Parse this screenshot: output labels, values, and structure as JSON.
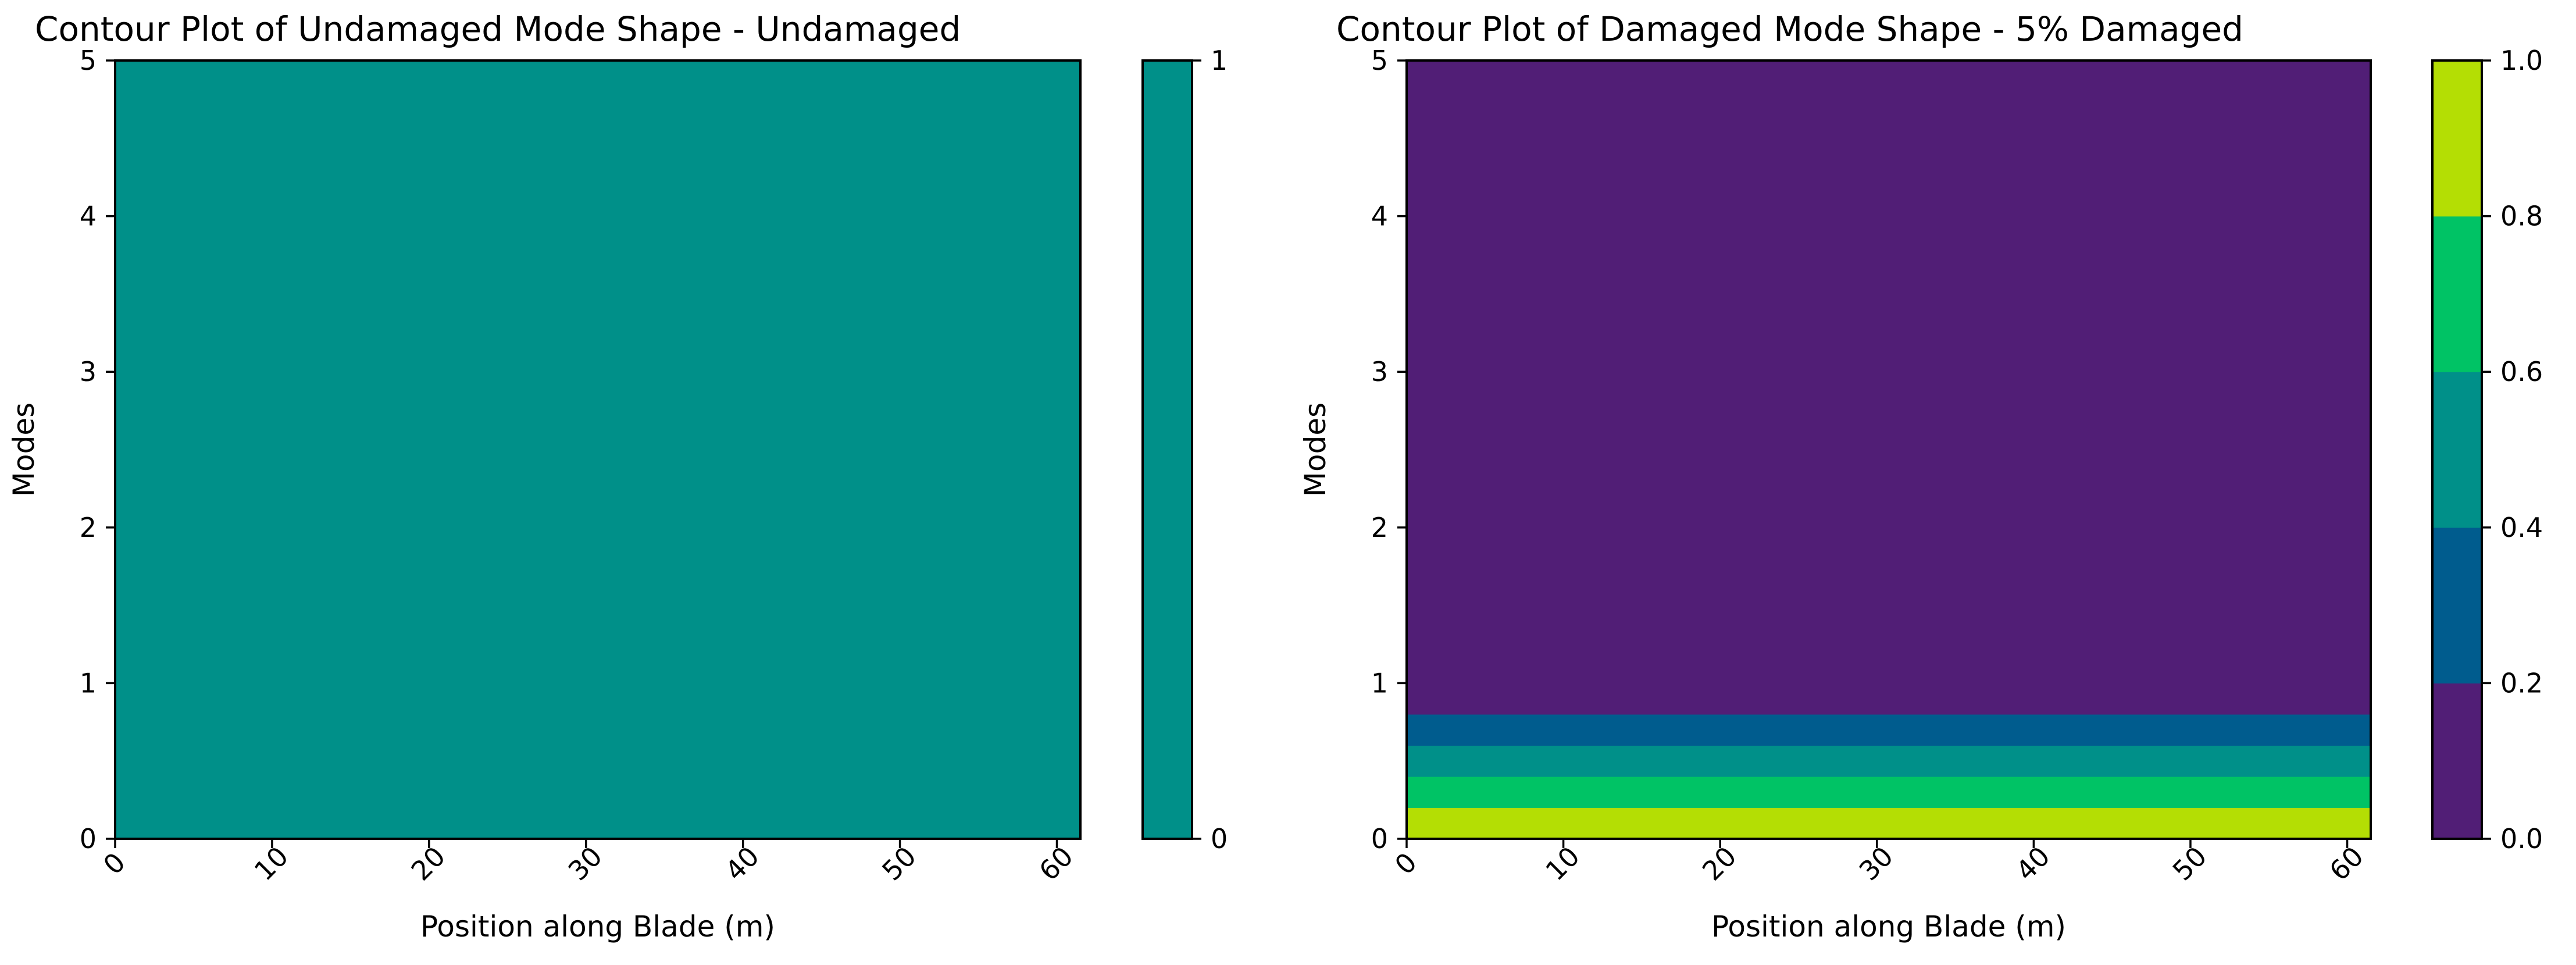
{
  "chart_data": [
    {
      "type": "heatmap",
      "title": "Contour Plot of Undamaged Mode Shape - Undamaged",
      "xlabel": "Position along Blade (m)",
      "ylabel": "Modes",
      "xlim": [
        0,
        61.5
      ],
      "ylim": [
        0,
        5
      ],
      "xticks": [
        "0",
        "10",
        "20",
        "30",
        "40",
        "50",
        "60"
      ],
      "yticks": [
        "0",
        "1",
        "2",
        "3",
        "4",
        "5"
      ],
      "bands": [
        {
          "y0": 0,
          "y1": 5,
          "color": "#009089"
        }
      ],
      "colorbar": {
        "range": [
          0,
          1
        ],
        "ticks": [
          "0",
          "1"
        ],
        "levels": [
          {
            "from": 0,
            "to": 1,
            "color": "#009089"
          }
        ]
      }
    },
    {
      "type": "heatmap",
      "title": "Contour Plot of Damaged Mode Shape - 5% Damaged",
      "xlabel": "Position along Blade (m)",
      "ylabel": "Modes",
      "xlim": [
        0,
        61.5
      ],
      "ylim": [
        0,
        5
      ],
      "xticks": [
        "0",
        "10",
        "20",
        "30",
        "40",
        "50",
        "60"
      ],
      "yticks": [
        "0",
        "1",
        "2",
        "3",
        "4",
        "5"
      ],
      "bands": [
        {
          "y0": 0.0,
          "y1": 0.2,
          "color": "#b4de04"
        },
        {
          "y0": 0.2,
          "y1": 0.4,
          "color": "#00c365"
        },
        {
          "y0": 0.4,
          "y1": 0.6,
          "color": "#009089"
        },
        {
          "y0": 0.6,
          "y1": 0.8,
          "color": "#005c8e"
        },
        {
          "y0": 0.8,
          "y1": 5.0,
          "color": "#511e76"
        }
      ],
      "colorbar": {
        "range": [
          0,
          1
        ],
        "ticks": [
          "0.0",
          "0.2",
          "0.4",
          "0.6",
          "0.8",
          "1.0"
        ],
        "levels": [
          {
            "from": 0.0,
            "to": 0.2,
            "color": "#511e76"
          },
          {
            "from": 0.2,
            "to": 0.4,
            "color": "#005c8e"
          },
          {
            "from": 0.4,
            "to": 0.6,
            "color": "#009089"
          },
          {
            "from": 0.6,
            "to": 0.8,
            "color": "#00c365"
          },
          {
            "from": 0.8,
            "to": 1.0,
            "color": "#b4de04"
          }
        ]
      }
    }
  ]
}
